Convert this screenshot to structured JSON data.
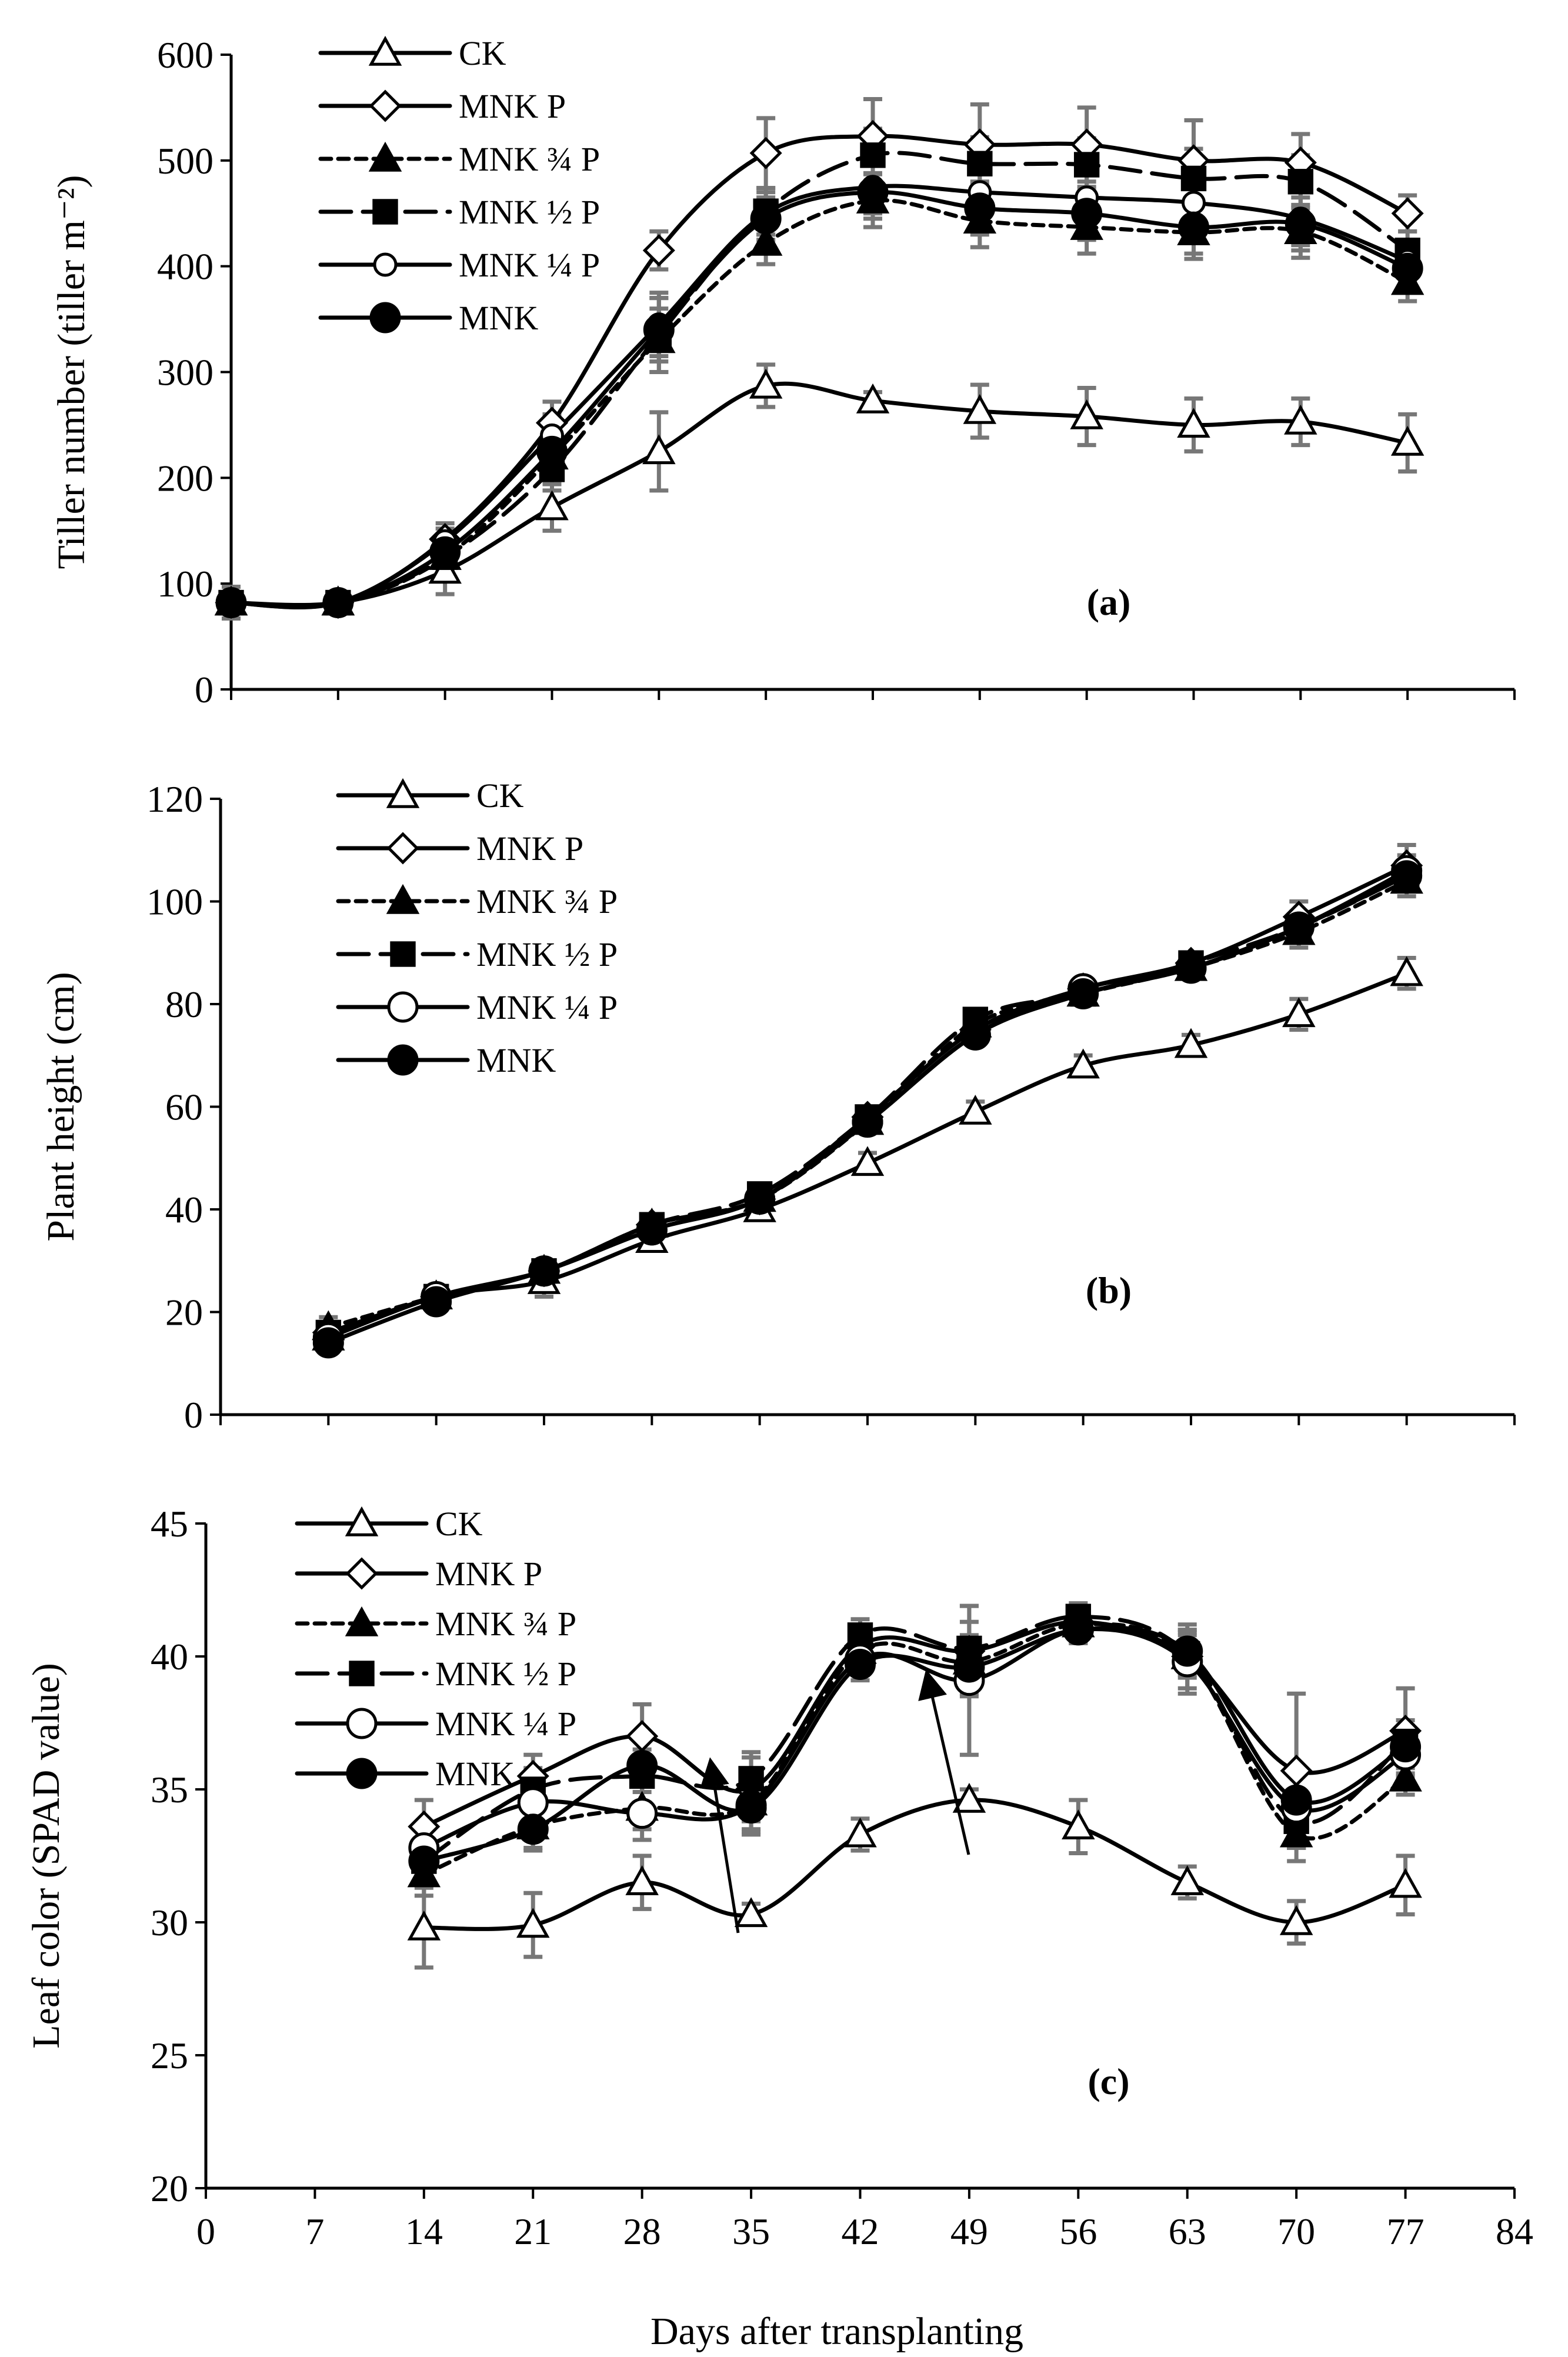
{
  "figure": {
    "xlabel": "Days after transplanting",
    "x_ticks": [
      "0",
      "7",
      "14",
      "21",
      "28",
      "35",
      "42",
      "49",
      "56",
      "63",
      "70",
      "77",
      "84"
    ]
  },
  "legend_labels": [
    "CK",
    "MNK P",
    "MNK ¾ P",
    "MNK ½ P",
    "MNK ¼ P",
    "MNK"
  ],
  "chart_data": [
    {
      "type": "line",
      "panel": "(a)",
      "ylabel": "Tiller number (tiller m⁻²)",
      "ylim": [
        0,
        600
      ],
      "y_ticks": [
        "0",
        "100",
        "200",
        "300",
        "400",
        "500",
        "600"
      ],
      "xlim": [
        0,
        84
      ],
      "series": [
        {
          "name": "CK",
          "marker": "triangle-open",
          "dash": "solid",
          "x": [
            0,
            7,
            14,
            21,
            28,
            35,
            42,
            49,
            56,
            63,
            70,
            77
          ],
          "y": [
            82,
            82,
            112,
            172,
            225,
            287,
            273,
            263,
            258,
            250,
            253,
            233
          ],
          "err": [
            15,
            6,
            22,
            22,
            37,
            20,
            8,
            25,
            27,
            25,
            22,
            27
          ]
        },
        {
          "name": "MNK P",
          "marker": "diamond-open",
          "dash": "solid",
          "x": [
            0,
            7,
            14,
            21,
            28,
            35,
            42,
            49,
            56,
            63,
            70,
            77
          ],
          "y": [
            82,
            82,
            142,
            252,
            415,
            507,
            523,
            515,
            515,
            500,
            498,
            450
          ],
          "err": [
            8,
            5,
            15,
            20,
            18,
            33,
            35,
            38,
            35,
            38,
            27,
            17
          ]
        },
        {
          "name": "MNK ¾ P",
          "marker": "triangle-filled",
          "dash": "short",
          "x": [
            0,
            7,
            14,
            21,
            28,
            35,
            42,
            49,
            56,
            63,
            70,
            77
          ],
          "y": [
            82,
            82,
            125,
            220,
            330,
            422,
            462,
            443,
            437,
            432,
            433,
            385
          ],
          "err": [
            8,
            5,
            12,
            20,
            30,
            20,
            25,
            25,
            25,
            25,
            25,
            18
          ]
        },
        {
          "name": "MNK ½ P",
          "marker": "square-filled",
          "dash": "long",
          "x": [
            0,
            7,
            14,
            21,
            28,
            35,
            42,
            49,
            56,
            63,
            70,
            77
          ],
          "y": [
            82,
            82,
            125,
            208,
            335,
            452,
            505,
            497,
            496,
            483,
            480,
            415
          ],
          "err": [
            8,
            5,
            12,
            20,
            35,
            22,
            25,
            25,
            25,
            28,
            25,
            18
          ]
        },
        {
          "name": "MNK ¼ P",
          "marker": "circle-open-small",
          "dash": "solid",
          "x": [
            0,
            7,
            14,
            21,
            28,
            35,
            42,
            49,
            56,
            63,
            70,
            77
          ],
          "y": [
            82,
            82,
            140,
            240,
            345,
            450,
            475,
            470,
            465,
            460,
            445,
            405
          ],
          "err": [
            8,
            5,
            12,
            20,
            30,
            20,
            25,
            25,
            25,
            25,
            25,
            18
          ]
        },
        {
          "name": "MNK",
          "marker": "circle-filled",
          "dash": "solid",
          "x": [
            0,
            7,
            14,
            21,
            28,
            35,
            42,
            49,
            56,
            63,
            70,
            77
          ],
          "y": [
            82,
            82,
            130,
            225,
            340,
            445,
            470,
            455,
            450,
            437,
            440,
            398
          ],
          "err": [
            8,
            5,
            12,
            20,
            30,
            20,
            25,
            25,
            25,
            25,
            25,
            18
          ]
        }
      ]
    },
    {
      "type": "line",
      "panel": "(b)",
      "ylabel": "Plant height (cm)",
      "ylim": [
        0,
        120
      ],
      "y_ticks": [
        "0",
        "20",
        "40",
        "60",
        "80",
        "100",
        "120"
      ],
      "xlim": [
        0,
        84
      ],
      "series": [
        {
          "name": "CK",
          "marker": "triangle-open",
          "dash": "solid",
          "x": [
            7,
            14,
            21,
            28,
            35,
            42,
            49,
            56,
            63,
            70,
            77
          ],
          "y": [
            15,
            23,
            26,
            34,
            40,
            49,
            59,
            68,
            72,
            78,
            86
          ],
          "err": [
            3,
            2,
            3,
            2,
            2,
            2,
            2,
            2,
            2,
            3,
            3
          ]
        },
        {
          "name": "MNK P",
          "marker": "diamond-open",
          "dash": "solid",
          "x": [
            7,
            14,
            21,
            28,
            35,
            42,
            49,
            56,
            63,
            70,
            77
          ],
          "y": [
            16,
            23,
            28,
            37,
            42,
            58,
            75,
            83,
            88,
            97,
            107
          ],
          "err": [
            2,
            2,
            2,
            2,
            2,
            2,
            2,
            2,
            2,
            3,
            4
          ]
        },
        {
          "name": "MNK ¾ P",
          "marker": "triangle-filled",
          "dash": "short",
          "x": [
            7,
            14,
            21,
            28,
            35,
            42,
            49,
            56,
            63,
            70,
            77
          ],
          "y": [
            17,
            23,
            28,
            37,
            42,
            57,
            76,
            82,
            87,
            94,
            104
          ],
          "err": [
            2,
            2,
            2,
            2,
            2,
            2,
            2,
            2,
            2,
            3,
            3
          ]
        },
        {
          "name": "MNK ½ P",
          "marker": "square-filled",
          "dash": "long",
          "x": [
            7,
            14,
            21,
            28,
            35,
            42,
            49,
            56,
            63,
            70,
            77
          ],
          "y": [
            16,
            23,
            28,
            37,
            43,
            58,
            77,
            82,
            88,
            95,
            105
          ],
          "err": [
            2,
            2,
            2,
            2,
            2,
            2,
            2,
            2,
            2,
            3,
            3
          ]
        },
        {
          "name": "MNK ¼ P",
          "marker": "circle-open",
          "dash": "solid",
          "x": [
            7,
            14,
            21,
            28,
            35,
            42,
            49,
            56,
            63,
            70,
            77
          ],
          "y": [
            15,
            23,
            28,
            36,
            42,
            57,
            74,
            83,
            87,
            95,
            106
          ],
          "err": [
            2,
            2,
            2,
            2,
            2,
            2,
            2,
            2,
            2,
            3,
            3
          ]
        },
        {
          "name": "MNK",
          "marker": "circle-filled",
          "dash": "solid",
          "x": [
            7,
            14,
            21,
            28,
            35,
            42,
            49,
            56,
            63,
            70,
            77
          ],
          "y": [
            14,
            22,
            28,
            36,
            42,
            57,
            74,
            82,
            87,
            95,
            105
          ],
          "err": [
            2,
            2,
            2,
            2,
            2,
            2,
            2,
            2,
            2,
            3,
            3
          ]
        }
      ]
    },
    {
      "type": "line",
      "panel": "(c)",
      "ylabel": "Leaf color (SPAD value)",
      "ylim": [
        20,
        45
      ],
      "y_ticks": [
        "20",
        "25",
        "30",
        "35",
        "40",
        "45"
      ],
      "xlim": [
        0,
        84
      ],
      "series": [
        {
          "name": "CK",
          "marker": "triangle-open",
          "dash": "solid",
          "x": [
            14,
            21,
            28,
            35,
            42,
            49,
            56,
            63,
            70,
            77
          ],
          "y": [
            29.8,
            29.9,
            31.5,
            30.3,
            33.3,
            34.6,
            33.6,
            31.5,
            30.0,
            31.4
          ],
          "err": [
            1.5,
            1.2,
            1.0,
            0.4,
            0.6,
            0.4,
            1.0,
            0.6,
            0.8,
            1.1
          ]
        },
        {
          "name": "MNK P",
          "marker": "diamond-open",
          "dash": "solid",
          "x": [
            14,
            21,
            28,
            35,
            42,
            49,
            56,
            63,
            70,
            77
          ],
          "y": [
            33.6,
            35.5,
            37.0,
            35.0,
            40.4,
            40.2,
            41.3,
            40.0,
            35.7,
            37.2
          ],
          "err": [
            1.0,
            0.8,
            1.2,
            1.2,
            0.8,
            1.7,
            0.5,
            1.2,
            2.9,
            1.6
          ]
        },
        {
          "name": "MNK ¾ P",
          "marker": "triangle-filled",
          "dash": "short",
          "x": [
            14,
            21,
            28,
            35,
            42,
            49,
            56,
            63,
            70,
            77
          ],
          "y": [
            31.8,
            33.6,
            34.3,
            34.5,
            40.2,
            39.8,
            41.2,
            40.0,
            33.3,
            35.4
          ],
          "err": [
            0.8,
            0.8,
            0.8,
            1.0,
            0.6,
            1.0,
            0.5,
            0.8,
            1.0,
            0.6
          ]
        },
        {
          "name": "MNK ½ P",
          "marker": "square-filled",
          "dash": "long",
          "x": [
            14,
            21,
            28,
            35,
            42,
            49,
            56,
            63,
            70,
            77
          ],
          "y": [
            32.3,
            35.0,
            35.5,
            35.4,
            40.8,
            40.3,
            41.5,
            40.1,
            33.8,
            36.8
          ],
          "err": [
            0.8,
            0.8,
            1.0,
            1.0,
            0.6,
            1.0,
            0.5,
            0.8,
            1.0,
            0.8
          ]
        },
        {
          "name": "MNK ¼ P",
          "marker": "circle-open",
          "dash": "solid",
          "x": [
            14,
            21,
            28,
            35,
            42,
            49,
            56,
            63,
            70,
            77
          ],
          "y": [
            32.8,
            34.5,
            34.1,
            34.4,
            39.9,
            39.1,
            41.0,
            39.8,
            34.3,
            36.3
          ],
          "err": [
            0.8,
            0.8,
            1.0,
            1.0,
            0.6,
            2.8,
            0.5,
            1.2,
            1.5,
            0.8
          ]
        },
        {
          "name": "MNK",
          "marker": "circle-filled",
          "dash": "solid",
          "x": [
            14,
            21,
            28,
            35,
            42,
            49,
            56,
            63,
            70,
            77
          ],
          "y": [
            32.3,
            33.5,
            35.9,
            34.3,
            39.7,
            39.6,
            41.0,
            40.2,
            34.6,
            36.6
          ],
          "err": [
            0.8,
            0.8,
            1.0,
            1.0,
            0.6,
            1.0,
            0.5,
            0.8,
            1.0,
            0.8
          ]
        }
      ]
    }
  ]
}
